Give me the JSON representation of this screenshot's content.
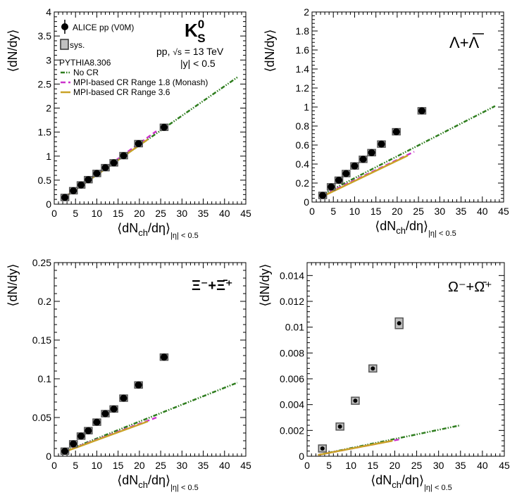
{
  "legend": {
    "data_label": "ALICE pp (V0M)",
    "sys_label": "sys.",
    "generator": "PYTHIA8.306",
    "models": [
      {
        "key": "nocr",
        "label": "No CR",
        "color": "#2e7d1e",
        "dash": "dashdotdot"
      },
      {
        "key": "monash",
        "label": "MPI-based CR Range 1.8 (Monash)",
        "color": "#cc33cc",
        "dash": "dash"
      },
      {
        "key": "cr36",
        "label": "MPI-based CR Range 3.6",
        "color": "#c9a227",
        "dash": "solid"
      }
    ]
  },
  "colors": {
    "data": "#000000",
    "sys_box": "#555555",
    "sys_fill": "#c0c0c0",
    "nocr": "#2e7d1e",
    "monash": "#cc33cc",
    "cr36": "#c9a227"
  },
  "annotations": {
    "k0s_label": "K",
    "k0s_sup": "0",
    "k0s_sub": "S",
    "system_text": "pp, ",
    "sqrt_text": "√s",
    "energy_text": " = 13 TeV",
    "rapidity_text": "|y| < 0.5",
    "lambda_label": "Λ+Λ",
    "xi_label": "Ξ⁻+Ξ̄⁺",
    "omega_label": "Ω⁻+Ω̄⁺"
  },
  "axis_text": {
    "ylabel": "⟨dN/dy⟩",
    "xlabel_main": "⟨dN",
    "xlabel_sub": "ch",
    "xlabel_end": "/dη⟩",
    "xlabel_range": "|η| < 0.5"
  },
  "chart_data": [
    {
      "id": "k0s",
      "type": "scatter",
      "xlim": [
        0,
        45
      ],
      "ylim": [
        0,
        4
      ],
      "xticks": [
        0,
        5,
        10,
        15,
        20,
        25,
        30,
        35,
        40,
        45
      ],
      "xticklabels": [
        "0",
        "5",
        "10",
        "15",
        "20",
        "25",
        "30",
        "35",
        "40",
        "45"
      ],
      "yticks": [
        0,
        0.5,
        1,
        1.5,
        2,
        2.5,
        3,
        3.5,
        4
      ],
      "yticklabels": [
        "0",
        "0.5",
        "1",
        "1.5",
        "2",
        "2.5",
        "3",
        "3.5",
        "4"
      ],
      "x": [
        2.5,
        4.5,
        6.3,
        8.0,
        10.0,
        12.0,
        14.0,
        16.3,
        19.8,
        25.8
      ],
      "y": [
        0.14,
        0.28,
        0.4,
        0.51,
        0.64,
        0.76,
        0.86,
        1.01,
        1.26,
        1.6
      ],
      "models": {
        "nocr": [
          [
            2.5,
            0.15
          ],
          [
            43.0,
            2.64
          ]
        ],
        "monash": [
          [
            2.5,
            0.15
          ],
          [
            24.0,
            1.52
          ]
        ],
        "cr36": [
          [
            2.5,
            0.15
          ],
          [
            22.0,
            1.35
          ]
        ]
      }
    },
    {
      "id": "lambda",
      "type": "scatter",
      "xlim": [
        0,
        45
      ],
      "ylim": [
        0,
        2
      ],
      "xticks": [
        0,
        5,
        10,
        15,
        20,
        25,
        30,
        35,
        40,
        45
      ],
      "xticklabels": [
        "0",
        "5",
        "10",
        "15",
        "20",
        "25",
        "30",
        "35",
        "40",
        "45"
      ],
      "yticks": [
        0,
        0.2,
        0.4,
        0.6,
        0.8,
        1,
        1.2,
        1.4,
        1.6,
        1.8,
        2
      ],
      "yticklabels": [
        "0",
        "0.2",
        "0.4",
        "0.6",
        "0.8",
        "1",
        "1.2",
        "1.4",
        "1.6",
        "1.8",
        "2"
      ],
      "x": [
        2.5,
        4.5,
        6.3,
        8.0,
        10.0,
        12.0,
        14.0,
        16.3,
        19.8,
        25.8
      ],
      "y": [
        0.07,
        0.16,
        0.23,
        0.3,
        0.38,
        0.45,
        0.52,
        0.61,
        0.74,
        0.96
      ],
      "models": {
        "nocr": [
          [
            2.5,
            0.08
          ],
          [
            43.0,
            1.01
          ]
        ],
        "monash": [
          [
            2.5,
            0.07
          ],
          [
            24.0,
            0.53
          ]
        ],
        "cr36": [
          [
            2.5,
            0.06
          ],
          [
            22.5,
            0.49
          ]
        ]
      }
    },
    {
      "id": "xi",
      "type": "scatter",
      "xlim": [
        0,
        45
      ],
      "ylim": [
        0,
        0.25
      ],
      "xticks": [
        0,
        5,
        10,
        15,
        20,
        25,
        30,
        35,
        40,
        45
      ],
      "xticklabels": [
        "0",
        "5",
        "10",
        "15",
        "20",
        "25",
        "30",
        "35",
        "40",
        "45"
      ],
      "yticks": [
        0,
        0.05,
        0.1,
        0.15,
        0.2,
        0.25
      ],
      "yticklabels": [
        "0",
        "0.05",
        "0.1",
        "0.15",
        "0.2",
        "0.25"
      ],
      "x": [
        2.5,
        4.5,
        6.3,
        8.0,
        10.0,
        12.0,
        14.0,
        16.3,
        19.8,
        25.8
      ],
      "y": [
        0.0065,
        0.016,
        0.026,
        0.033,
        0.044,
        0.055,
        0.061,
        0.075,
        0.092,
        0.128
      ],
      "models": {
        "nocr": [
          [
            2.5,
            0.0065
          ],
          [
            43.0,
            0.095
          ]
        ],
        "monash": [
          [
            2.5,
            0.0062
          ],
          [
            24.0,
            0.05
          ]
        ],
        "cr36": [
          [
            2.5,
            0.0058
          ],
          [
            22.0,
            0.045
          ]
        ]
      }
    },
    {
      "id": "omega",
      "type": "scatter",
      "xlim": [
        0,
        45
      ],
      "ylim": [
        0,
        0.015
      ],
      "xticks": [
        0,
        5,
        10,
        15,
        20,
        25,
        30,
        35,
        40,
        45
      ],
      "xticklabels": [
        "0",
        "5",
        "10",
        "15",
        "20",
        "25",
        "30",
        "35",
        "40",
        "45"
      ],
      "yticks": [
        0,
        0.002,
        0.004,
        0.006,
        0.008,
        0.01,
        0.012,
        0.014
      ],
      "yticklabels": [
        "0",
        "0.002",
        "0.004",
        "0.006",
        "0.008",
        "0.01",
        "0.012",
        "0.014"
      ],
      "x": [
        3.5,
        7.5,
        11.0,
        15.0,
        21.0
      ],
      "y": [
        0.0006,
        0.0023,
        0.0043,
        0.0068,
        0.0103
      ],
      "models": {
        "nocr": [
          [
            2.5,
            0.0001
          ],
          [
            35.0,
            0.0024
          ]
        ],
        "monash": [
          [
            2.5,
            0.0001
          ],
          [
            21.0,
            0.0013
          ]
        ],
        "cr36": [
          [
            2.5,
            0.0001
          ],
          [
            19.5,
            0.0012
          ]
        ]
      }
    }
  ]
}
